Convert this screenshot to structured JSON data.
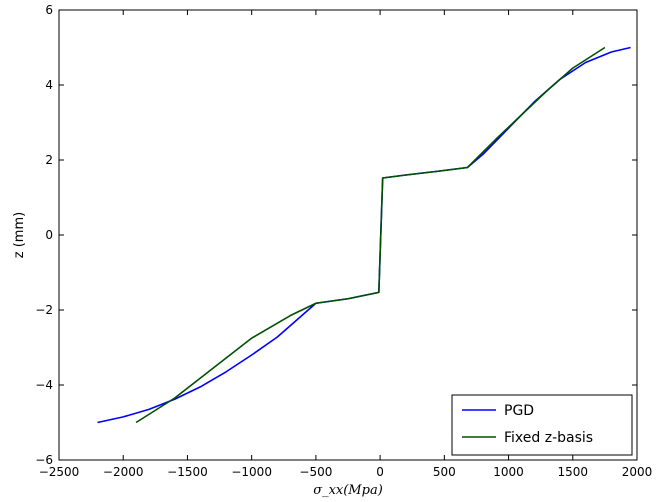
{
  "chart_data": {
    "type": "line",
    "title": "",
    "xlabel": "σ_xx(Mpa)",
    "ylabel": "z (mm)",
    "xlim": [
      -2500,
      2000
    ],
    "ylim": [
      -6,
      6
    ],
    "xticks": [
      -2500,
      -2000,
      -1500,
      -1000,
      -500,
      0,
      500,
      1000,
      1500,
      2000
    ],
    "yticks": [
      -6,
      -4,
      -2,
      0,
      2,
      4,
      6
    ],
    "xtick_labels": [
      "−2500",
      "−2000",
      "−1500",
      "−1000",
      "−500",
      "0",
      "500",
      "1000",
      "1500",
      "2000"
    ],
    "ytick_labels": [
      "−6",
      "−4",
      "−2",
      "0",
      "2",
      "4",
      "6"
    ],
    "grid": false,
    "legend_position": "lower-right",
    "series": [
      {
        "name": "PGD",
        "color": "#0000ff",
        "points": [
          [
            -2200,
            -5.0
          ],
          [
            -2000,
            -4.85
          ],
          [
            -1800,
            -4.65
          ],
          [
            -1600,
            -4.38
          ],
          [
            -1400,
            -4.05
          ],
          [
            -1200,
            -3.65
          ],
          [
            -1000,
            -3.2
          ],
          [
            -800,
            -2.72
          ],
          [
            -650,
            -2.27
          ],
          [
            -500,
            -1.82
          ],
          [
            -250,
            -1.7
          ],
          [
            -10,
            -1.53
          ],
          [
            -10,
            -1.53
          ],
          [
            20,
            1.52
          ],
          [
            200,
            1.6
          ],
          [
            450,
            1.7
          ],
          [
            680,
            1.8
          ],
          [
            800,
            2.15
          ],
          [
            1000,
            2.85
          ],
          [
            1200,
            3.55
          ],
          [
            1400,
            4.15
          ],
          [
            1600,
            4.6
          ],
          [
            1800,
            4.88
          ],
          [
            1950,
            5.0
          ]
        ]
      },
      {
        "name": "Fixed z-basis",
        "color": "#005000",
        "points": [
          [
            -1900,
            -5.0
          ],
          [
            -1600,
            -4.35
          ],
          [
            -1300,
            -3.55
          ],
          [
            -1000,
            -2.75
          ],
          [
            -700,
            -2.15
          ],
          [
            -500,
            -1.82
          ],
          [
            -250,
            -1.7
          ],
          [
            -10,
            -1.53
          ],
          [
            -10,
            -1.53
          ],
          [
            20,
            1.52
          ],
          [
            200,
            1.6
          ],
          [
            450,
            1.7
          ],
          [
            680,
            1.8
          ],
          [
            900,
            2.55
          ],
          [
            1100,
            3.2
          ],
          [
            1300,
            3.85
          ],
          [
            1500,
            4.45
          ],
          [
            1750,
            5.0
          ]
        ]
      }
    ]
  }
}
